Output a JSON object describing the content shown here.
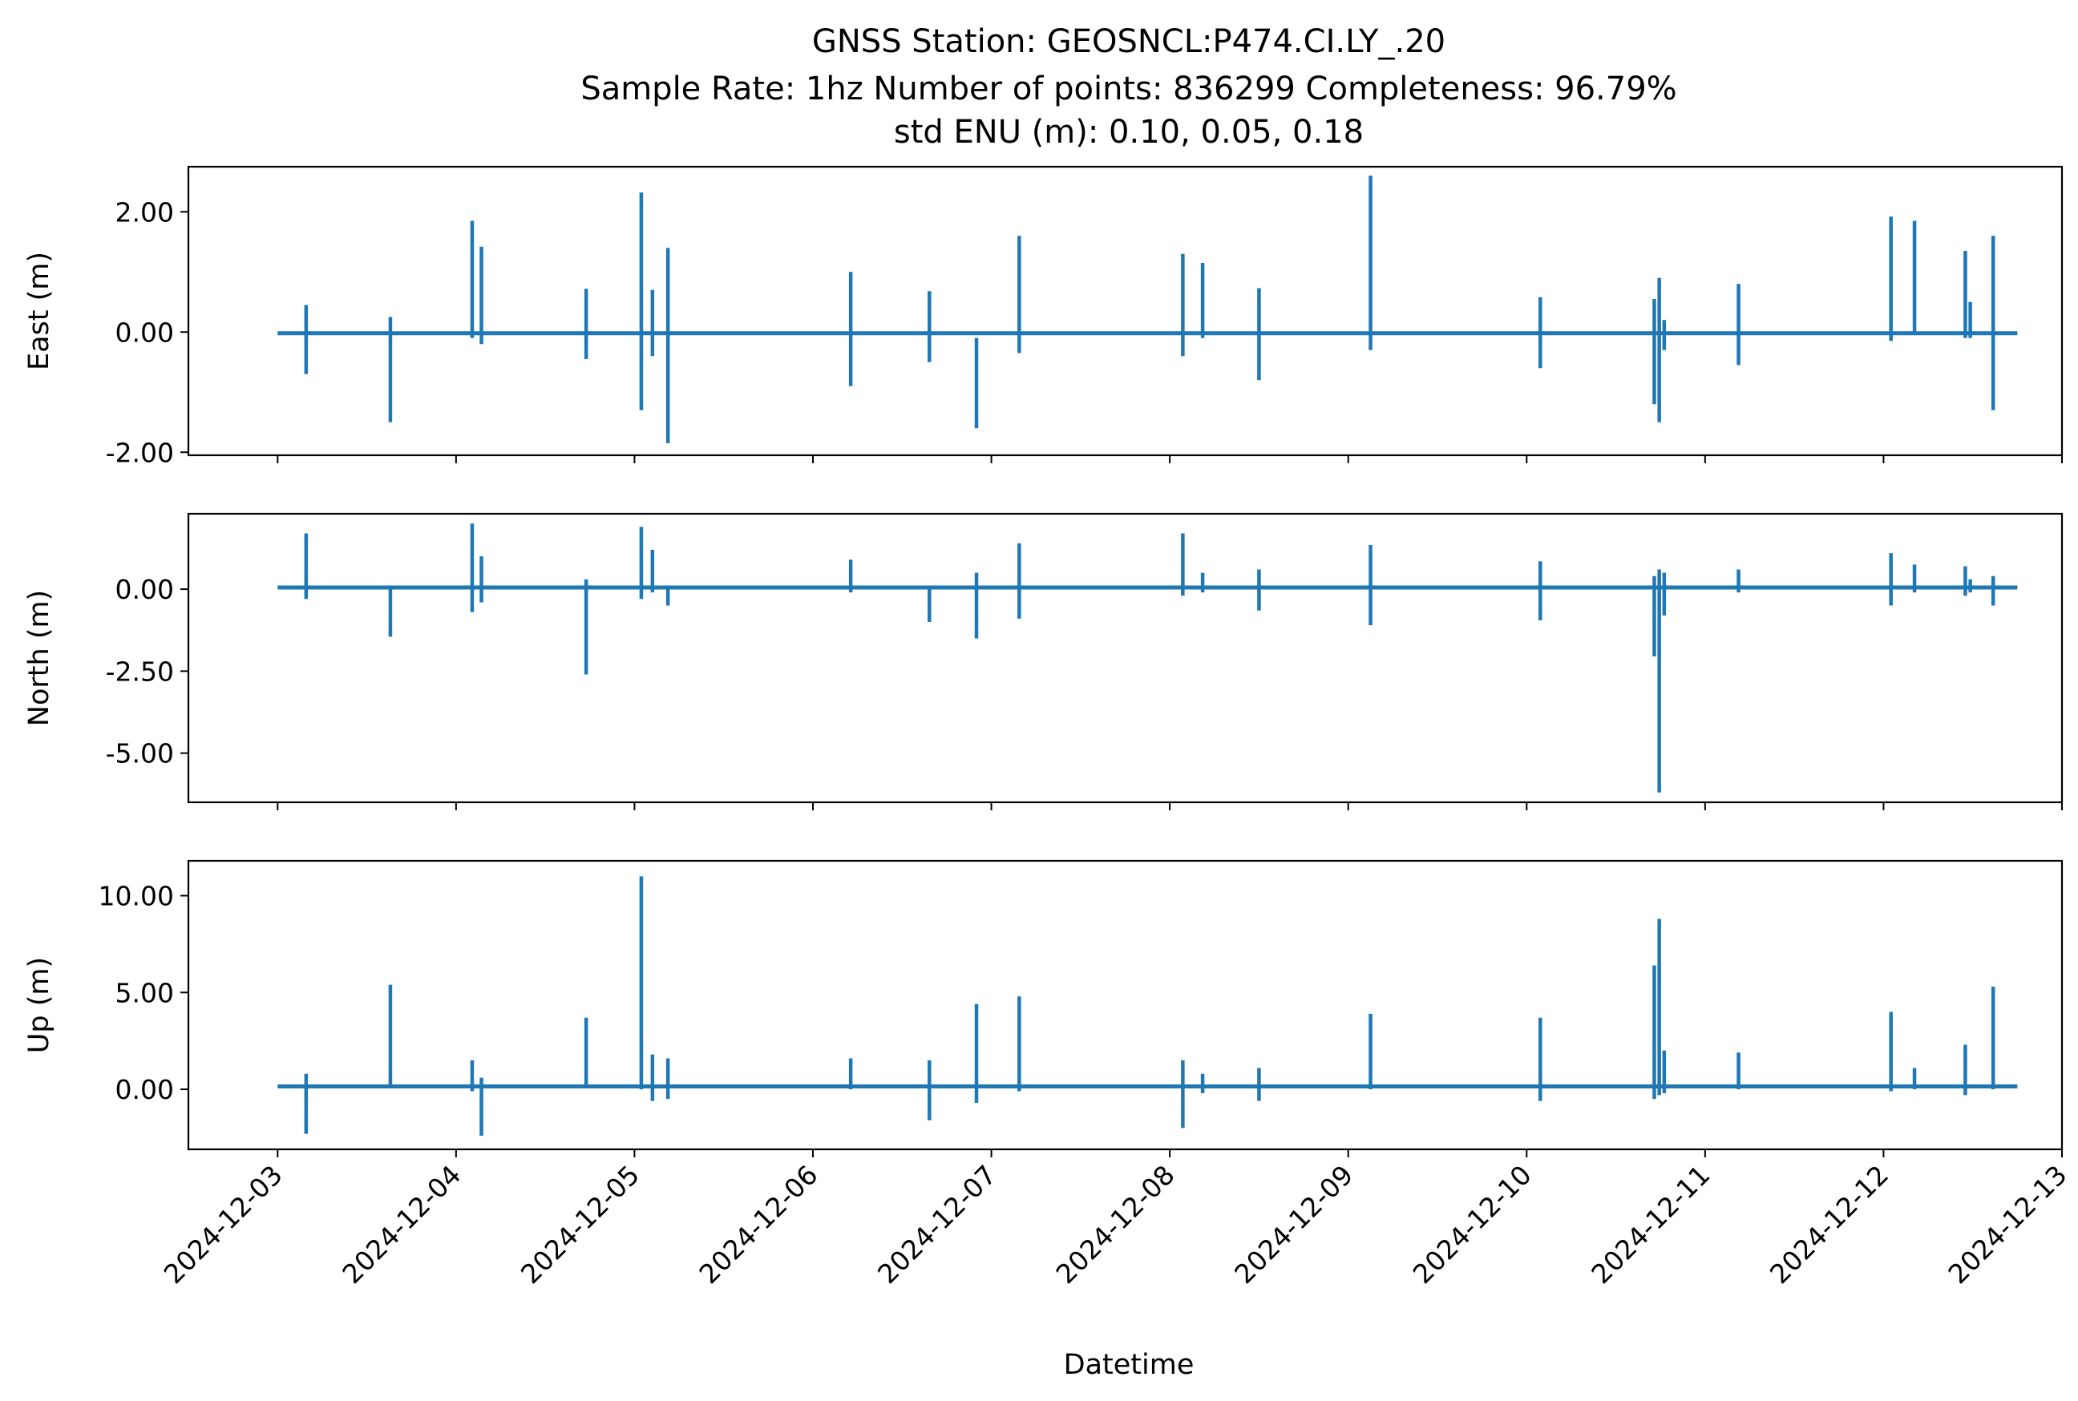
{
  "chart_data": {
    "type": "line",
    "title_lines": [
      "GNSS Station: GEOSNCL:P474.CI.LY_.20",
      "Sample Rate: 1hz   Number of points: 836299    Completeness:  96.79%",
      "std ENU (m):  0.10, 0.05, 0.18"
    ],
    "xlabel": "Datetime",
    "x_ticks": [
      "2024-12-03",
      "2024-12-04",
      "2024-12-05",
      "2024-12-06",
      "2024-12-07",
      "2024-12-08",
      "2024-12-09",
      "2024-12-10",
      "2024-12-11",
      "2024-12-12",
      "2024-12-13"
    ],
    "xlim": [
      "2024-12-02T12:00",
      "2024-12-13T00:00"
    ],
    "series_color": "#1f77b4",
    "grid": false,
    "panels": [
      {
        "name": "East",
        "ylabel": "East (m)",
        "ylim": [
          -2.05,
          2.75
        ],
        "y_ticks": [
          -2,
          0,
          2
        ],
        "y_tick_labels": [
          "-2.00",
          "0.00",
          "2.00"
        ],
        "baseline": -0.02,
        "spikes": [
          {
            "x": "2024-12-03T03:50",
            "min": -0.7,
            "max": 0.45
          },
          {
            "x": "2024-12-03T15:10",
            "min": -1.5,
            "max": 0.25
          },
          {
            "x": "2024-12-04T02:10",
            "min": -0.1,
            "max": 1.85
          },
          {
            "x": "2024-12-04T03:25",
            "min": -0.2,
            "max": 1.42
          },
          {
            "x": "2024-12-04T17:30",
            "min": -0.45,
            "max": 0.72
          },
          {
            "x": "2024-12-05T00:55",
            "min": -1.3,
            "max": 2.32
          },
          {
            "x": "2024-12-05T02:25",
            "min": -0.4,
            "max": 0.7
          },
          {
            "x": "2024-12-05T04:30",
            "min": -1.85,
            "max": 1.4
          },
          {
            "x": "2024-12-06T05:05",
            "min": -0.9,
            "max": 1.0
          },
          {
            "x": "2024-12-06T15:40",
            "min": -0.5,
            "max": 0.68
          },
          {
            "x": "2024-12-06T22:00",
            "min": -1.6,
            "max": -0.1
          },
          {
            "x": "2024-12-07T03:45",
            "min": -0.35,
            "max": 1.6
          },
          {
            "x": "2024-12-08T01:45",
            "min": -0.4,
            "max": 1.3
          },
          {
            "x": "2024-12-08T04:25",
            "min": -0.1,
            "max": 1.15
          },
          {
            "x": "2024-12-08T12:00",
            "min": -0.8,
            "max": 0.73
          },
          {
            "x": "2024-12-09T03:00",
            "min": -0.3,
            "max": 2.6
          },
          {
            "x": "2024-12-10T01:50",
            "min": -0.6,
            "max": 0.58
          },
          {
            "x": "2024-12-10T17:10",
            "min": -1.2,
            "max": 0.55
          },
          {
            "x": "2024-12-10T17:50",
            "min": -1.5,
            "max": 0.9
          },
          {
            "x": "2024-12-10T18:30",
            "min": -0.3,
            "max": 0.2
          },
          {
            "x": "2024-12-11T04:30",
            "min": -0.55,
            "max": 0.8
          },
          {
            "x": "2024-12-12T01:00",
            "min": -0.15,
            "max": 1.92
          },
          {
            "x": "2024-12-12T04:10",
            "min": -0.05,
            "max": 1.85
          },
          {
            "x": "2024-12-12T11:00",
            "min": -0.1,
            "max": 1.35
          },
          {
            "x": "2024-12-12T11:40",
            "min": -0.1,
            "max": 0.5
          },
          {
            "x": "2024-12-12T14:45",
            "min": -1.3,
            "max": 1.6
          }
        ]
      },
      {
        "name": "North",
        "ylabel": "North (m)",
        "ylim": [
          -6.5,
          2.3
        ],
        "y_ticks": [
          -5,
          -2.5,
          0
        ],
        "y_tick_labels": [
          "-5.00",
          "-2.50",
          "0.00"
        ],
        "baseline": 0.05,
        "spikes": [
          {
            "x": "2024-12-03T03:50",
            "min": -0.3,
            "max": 1.7
          },
          {
            "x": "2024-12-03T15:10",
            "min": -1.45,
            "max": 0.05
          },
          {
            "x": "2024-12-04T02:10",
            "min": -0.7,
            "max": 2.0
          },
          {
            "x": "2024-12-04T03:25",
            "min": -0.4,
            "max": 1.0
          },
          {
            "x": "2024-12-04T17:30",
            "min": -2.6,
            "max": 0.3
          },
          {
            "x": "2024-12-05T00:55",
            "min": -0.3,
            "max": 1.9
          },
          {
            "x": "2024-12-05T02:25",
            "min": -0.1,
            "max": 1.2
          },
          {
            "x": "2024-12-05T04:30",
            "min": -0.5,
            "max": 0.1
          },
          {
            "x": "2024-12-06T05:05",
            "min": -0.1,
            "max": 0.9
          },
          {
            "x": "2024-12-06T15:40",
            "min": -1.0,
            "max": 0.1
          },
          {
            "x": "2024-12-06T22:00",
            "min": -1.5,
            "max": 0.5
          },
          {
            "x": "2024-12-07T03:45",
            "min": -0.9,
            "max": 1.4
          },
          {
            "x": "2024-12-08T01:45",
            "min": -0.2,
            "max": 1.7
          },
          {
            "x": "2024-12-08T04:25",
            "min": -0.1,
            "max": 0.5
          },
          {
            "x": "2024-12-08T12:00",
            "min": -0.65,
            "max": 0.6
          },
          {
            "x": "2024-12-09T03:00",
            "min": -1.1,
            "max": 1.35
          },
          {
            "x": "2024-12-10T01:50",
            "min": -0.95,
            "max": 0.85
          },
          {
            "x": "2024-12-10T17:10",
            "min": -2.05,
            "max": 0.4
          },
          {
            "x": "2024-12-10T17:50",
            "min": -6.2,
            "max": 0.6
          },
          {
            "x": "2024-12-10T18:30",
            "min": -0.8,
            "max": 0.5
          },
          {
            "x": "2024-12-11T04:30",
            "min": -0.1,
            "max": 0.6
          },
          {
            "x": "2024-12-12T01:00",
            "min": -0.5,
            "max": 1.1
          },
          {
            "x": "2024-12-12T04:10",
            "min": -0.1,
            "max": 0.75
          },
          {
            "x": "2024-12-12T11:00",
            "min": -0.2,
            "max": 0.7
          },
          {
            "x": "2024-12-12T11:40",
            "min": -0.1,
            "max": 0.3
          },
          {
            "x": "2024-12-12T14:45",
            "min": -0.5,
            "max": 0.4
          }
        ]
      },
      {
        "name": "Up",
        "ylabel": "Up (m)",
        "ylim": [
          -3.1,
          11.8
        ],
        "y_ticks": [
          0,
          5,
          10
        ],
        "y_tick_labels": [
          "0.00",
          "5.00",
          "10.00"
        ],
        "baseline": 0.15,
        "spikes": [
          {
            "x": "2024-12-03T03:50",
            "min": -2.3,
            "max": 0.8
          },
          {
            "x": "2024-12-03T15:10",
            "min": 0.1,
            "max": 5.4
          },
          {
            "x": "2024-12-04T02:10",
            "min": -0.1,
            "max": 1.5
          },
          {
            "x": "2024-12-04T03:25",
            "min": -2.4,
            "max": 0.6
          },
          {
            "x": "2024-12-04T17:30",
            "min": 0.1,
            "max": 3.7
          },
          {
            "x": "2024-12-05T00:55",
            "min": 0.0,
            "max": 11.0
          },
          {
            "x": "2024-12-05T02:25",
            "min": -0.6,
            "max": 1.8
          },
          {
            "x": "2024-12-05T04:30",
            "min": -0.5,
            "max": 1.6
          },
          {
            "x": "2024-12-06T05:05",
            "min": 0.0,
            "max": 1.6
          },
          {
            "x": "2024-12-06T15:40",
            "min": -1.6,
            "max": 1.5
          },
          {
            "x": "2024-12-06T22:00",
            "min": -0.7,
            "max": 4.4
          },
          {
            "x": "2024-12-07T03:45",
            "min": -0.1,
            "max": 4.8
          },
          {
            "x": "2024-12-08T01:45",
            "min": -2.0,
            "max": 1.5
          },
          {
            "x": "2024-12-08T04:25",
            "min": -0.2,
            "max": 0.8
          },
          {
            "x": "2024-12-08T12:00",
            "min": -0.6,
            "max": 1.1
          },
          {
            "x": "2024-12-09T03:00",
            "min": 0.0,
            "max": 3.9
          },
          {
            "x": "2024-12-10T01:50",
            "min": -0.6,
            "max": 3.7
          },
          {
            "x": "2024-12-10T17:10",
            "min": -0.5,
            "max": 6.4
          },
          {
            "x": "2024-12-10T17:50",
            "min": -0.3,
            "max": 8.8
          },
          {
            "x": "2024-12-10T18:30",
            "min": -0.2,
            "max": 2.0
          },
          {
            "x": "2024-12-11T04:30",
            "min": 0.0,
            "max": 1.9
          },
          {
            "x": "2024-12-12T01:00",
            "min": -0.1,
            "max": 4.0
          },
          {
            "x": "2024-12-12T04:10",
            "min": 0.0,
            "max": 1.1
          },
          {
            "x": "2024-12-12T11:00",
            "min": -0.3,
            "max": 2.3
          },
          {
            "x": "2024-12-12T14:45",
            "min": 0.0,
            "max": 5.3
          }
        ]
      }
    ]
  }
}
